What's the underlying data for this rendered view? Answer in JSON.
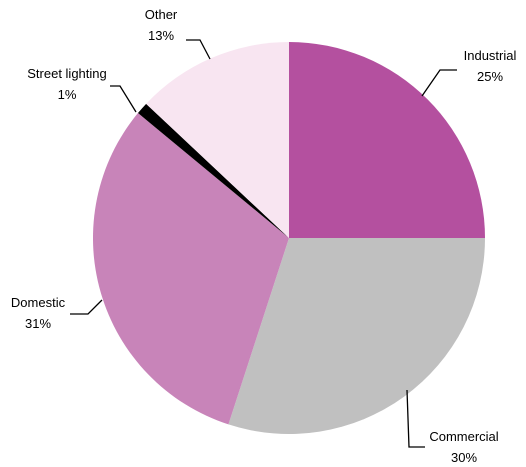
{
  "chart_data": {
    "type": "pie",
    "title": "",
    "start_angle_deg": 0,
    "direction": "clockwise",
    "slices": [
      {
        "label": "Industrial",
        "value": 25,
        "pct_label": "25%",
        "color": "#b4509f"
      },
      {
        "label": "Commercial",
        "value": 30,
        "pct_label": "30%",
        "color": "#c0c0c0"
      },
      {
        "label": "Domestic",
        "value": 31,
        "pct_label": "31%",
        "color": "#c884b9"
      },
      {
        "label": "Street lighting",
        "value": 1,
        "pct_label": "1%",
        "color": "#000000"
      },
      {
        "label": "Other",
        "value": 13,
        "pct_label": "13%",
        "color": "#f8e5f1"
      }
    ]
  }
}
